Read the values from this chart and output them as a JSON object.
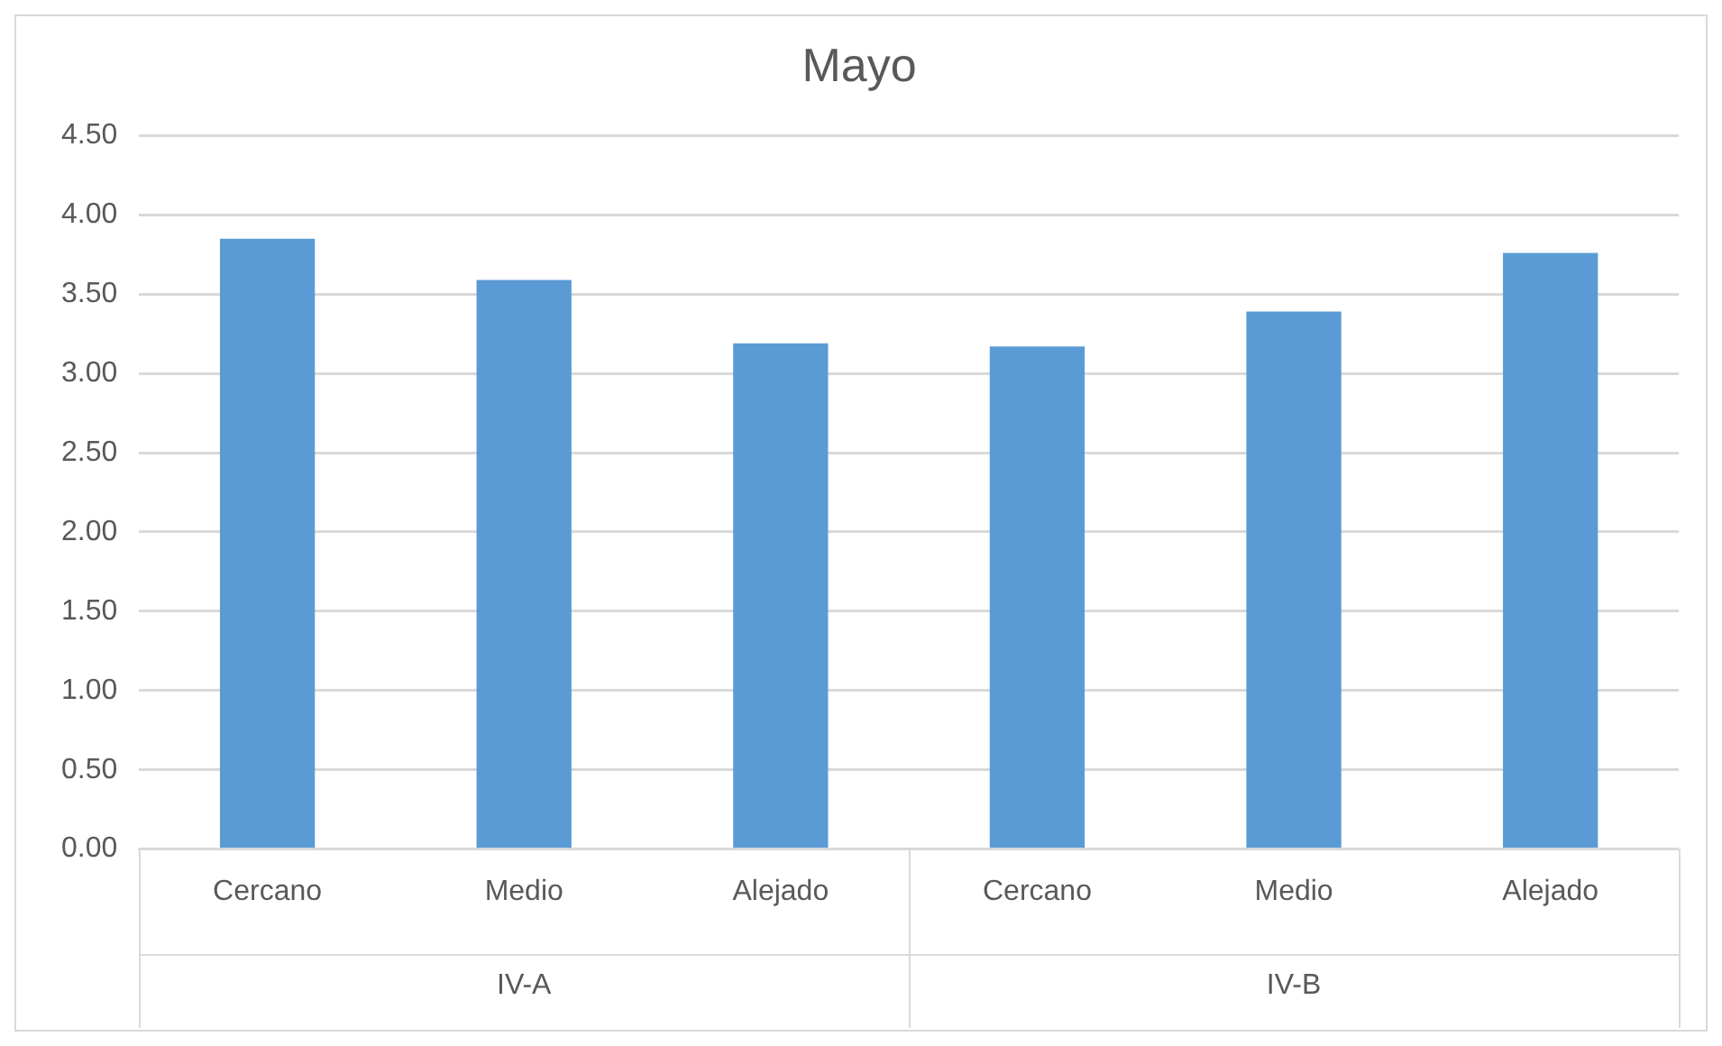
{
  "chart_data": {
    "type": "bar",
    "title": "Mayo",
    "categories": [
      "Cercano",
      "Medio",
      "Alejado",
      "Cercano",
      "Medio",
      "Alejado"
    ],
    "values": [
      3.85,
      3.59,
      3.19,
      3.17,
      3.39,
      3.76
    ],
    "color": "#5b9bd5",
    "ylim": [
      0,
      4.5
    ],
    "yticks": [
      {
        "value": 0,
        "label": "0.00"
      },
      {
        "value": 0.5,
        "label": "0.50"
      },
      {
        "value": 1,
        "label": "1.00"
      },
      {
        "value": 1.5,
        "label": "1.50"
      },
      {
        "value": 2,
        "label": "2.00"
      },
      {
        "value": 2.5,
        "label": "2.50"
      },
      {
        "value": 3,
        "label": "3.00"
      },
      {
        "value": 3.5,
        "label": "3.50"
      },
      {
        "value": 4,
        "label": "4.00"
      },
      {
        "value": 4.5,
        "label": "4.50"
      }
    ],
    "grid": "y",
    "legend": false,
    "annotations": [
      "IV-A",
      "IV-B"
    ]
  }
}
